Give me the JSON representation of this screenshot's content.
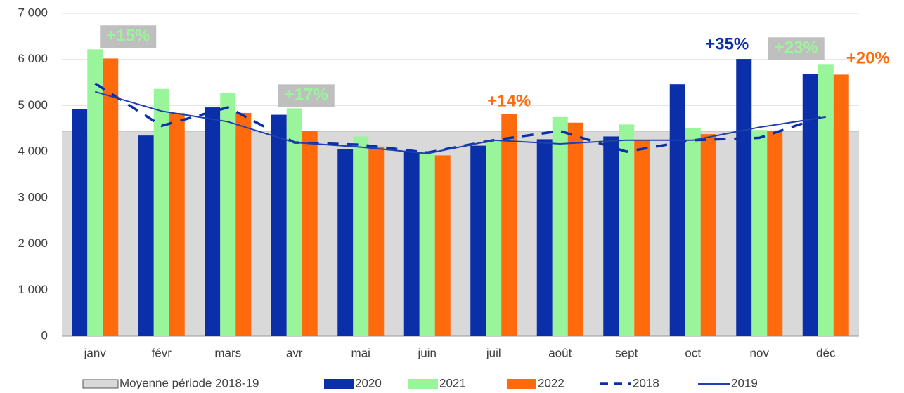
{
  "chart_data": {
    "type": "bar",
    "categories": [
      "janv",
      "févr",
      "mars",
      "avr",
      "mai",
      "juin",
      "juil",
      "août",
      "sept",
      "oct",
      "nov",
      "déc"
    ],
    "ylim": [
      0,
      7000
    ],
    "yticks": [
      0,
      {
        "value": 1000,
        "label": "1 000"
      },
      {
        "value": 2000,
        "label": "2 000"
      },
      {
        "value": 3000,
        "label": "3 000"
      },
      {
        "value": 4000,
        "label": "4 000"
      },
      {
        "value": 5000,
        "label": "5 000"
      },
      {
        "value": 6000,
        "label": "6 000"
      },
      {
        "value": 7000,
        "label": "7 000"
      }
    ],
    "grid": true,
    "legend": "bottom",
    "series": [
      {
        "name": "Moyenne période 2018-19",
        "kind": "area",
        "color": "#d9d9d9",
        "values": [
          4450,
          4450,
          4450,
          4450,
          4450,
          4450,
          4450,
          4450,
          4450,
          4450,
          4450,
          4450
        ]
      },
      {
        "name": "2020",
        "kind": "bar",
        "color": "#0a2fa8",
        "values": [
          4920,
          4350,
          4960,
          4800,
          4050,
          4000,
          4130,
          4270,
          4330,
          5460,
          6010,
          5690
        ]
      },
      {
        "name": "2021",
        "kind": "bar",
        "color": "#99f59a",
        "values": [
          6220,
          5360,
          5270,
          4940,
          4330,
          3990,
          4250,
          4750,
          4590,
          4520,
          4470,
          5900
        ]
      },
      {
        "name": "2022",
        "kind": "bar",
        "color": "#ff6a0d",
        "values": [
          6020,
          4840,
          4840,
          4450,
          4110,
          3920,
          4810,
          4630,
          4250,
          4380,
          4460,
          5670
        ]
      },
      {
        "name": "2018",
        "kind": "dashed-line",
        "color": "#0a2fa8",
        "values": [
          5480,
          4560,
          4960,
          4200,
          4150,
          3980,
          4250,
          4450,
          4000,
          4250,
          4300,
          4780
        ]
      },
      {
        "name": "2019",
        "kind": "line",
        "color": "#1f3fb0",
        "values": [
          5300,
          4880,
          4650,
          4200,
          4100,
          3960,
          4250,
          4170,
          4250,
          4250,
          4530,
          4750
        ]
      }
    ],
    "annotations": [
      {
        "text": "+15%",
        "category": "janv",
        "series": "2021",
        "color": "#99f59a",
        "background": "#bfbfbf"
      },
      {
        "text": "+17%",
        "category": "avr",
        "series": "2021",
        "color": "#99f59a",
        "background": "#bfbfbf"
      },
      {
        "text": "+14%",
        "category": "juil",
        "series": "2022",
        "color": "#ff6a0d"
      },
      {
        "text": "+35%",
        "category": "nov",
        "series": "2020",
        "color": "#0a2fa8"
      },
      {
        "text": "+23%",
        "category": "déc",
        "series": "2021",
        "color": "#99f59a",
        "background": "#bfbfbf"
      },
      {
        "text": "+20%",
        "category": "déc",
        "series": "2022",
        "color": "#ff6a0d"
      }
    ]
  }
}
